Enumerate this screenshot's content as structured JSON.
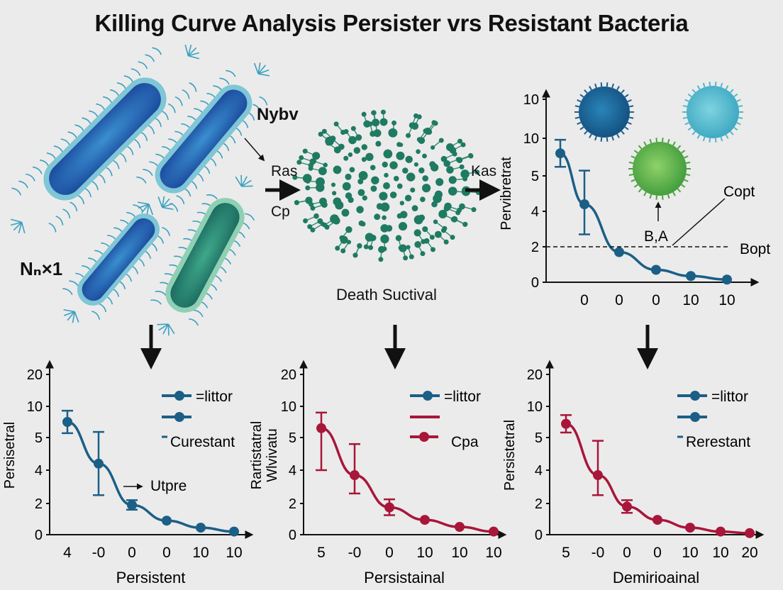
{
  "title": "Killing Curve Analysis Persister vrs Resistant Bacteria",
  "colors": {
    "background": "#ebebeb",
    "blue": "#1b5f87",
    "crimson": "#a8163a",
    "arrow": "#111111",
    "cluster": "#1f7a62"
  },
  "diagram": {
    "population_label": "Nₙ×1",
    "label_nybv": "Nybv",
    "label_ras": "Ras",
    "label_cp": "Cp",
    "label_kas": "Kas",
    "death_label": "Death Suctival"
  },
  "chart_data": [
    {
      "type": "line",
      "panel": "top-right",
      "ylabel": "Pervibretrat",
      "xlabel": "",
      "y_ticks": [
        "0",
        "2",
        "4",
        "5",
        "10",
        "10"
      ],
      "x_ticks": [
        "0",
        "0",
        "0",
        "10",
        "10"
      ],
      "series": [
        {
          "values": [
            8,
            4.2,
            1.7,
            0.7,
            0.35,
            0.15
          ],
          "err": [
            1.8,
            1.5,
            0,
            0,
            0,
            0
          ]
        }
      ],
      "reference_line": {
        "y": 2,
        "label": "Bopt"
      },
      "annotations": [
        "Copt",
        "B,A"
      ]
    },
    {
      "type": "line",
      "panel": "bottom-left",
      "ylabel": "Persisetral",
      "xlabel": "Persistent",
      "y_ticks": [
        "0",
        "2",
        "4",
        "5",
        "10",
        "20"
      ],
      "x_ticks": [
        "4",
        "-0",
        "0",
        "0",
        "10",
        "10"
      ],
      "series": [
        {
          "values": [
            7.5,
            4.2,
            1.9,
            0.9,
            0.45,
            0.2
          ],
          "err": [
            1.8,
            1.7,
            0.3,
            0,
            0,
            0
          ]
        }
      ],
      "legend": [
        "=littor",
        "",
        "Curestant"
      ],
      "annotations": [
        "Utpre"
      ]
    },
    {
      "type": "line",
      "panel": "bottom-middle",
      "ylabel": "Rartistatral Wlvivatu",
      "xlabel": "Persistainal",
      "y_ticks": [
        "0",
        "2",
        "4",
        "5",
        "10",
        "20"
      ],
      "x_ticks": [
        "5",
        "-0",
        "0",
        "10",
        "10",
        "10"
      ],
      "series": [
        {
          "values": [
            6.5,
            3.7,
            1.75,
            0.95,
            0.5,
            0.2
          ],
          "err": [
            2.5,
            1.1,
            0.5,
            0,
            0,
            0
          ]
        }
      ],
      "legend": [
        "=littor",
        "",
        "Cpa"
      ]
    },
    {
      "type": "line",
      "panel": "bottom-right",
      "ylabel": "Persistetral",
      "xlabel": "Demirioainal",
      "y_ticks": [
        "0",
        "2",
        "4",
        "5",
        "10",
        "20"
      ],
      "x_ticks": [
        "5",
        "-0",
        "0",
        "0",
        "10",
        "10",
        "20"
      ],
      "series": [
        {
          "values": [
            7.2,
            3.7,
            1.8,
            0.95,
            0.45,
            0.2,
            0.1
          ],
          "err": [
            1.4,
            1.2,
            0.4,
            0,
            0,
            0,
            0
          ]
        }
      ],
      "legend": [
        "=littor",
        "",
        "Rerestant"
      ]
    }
  ]
}
